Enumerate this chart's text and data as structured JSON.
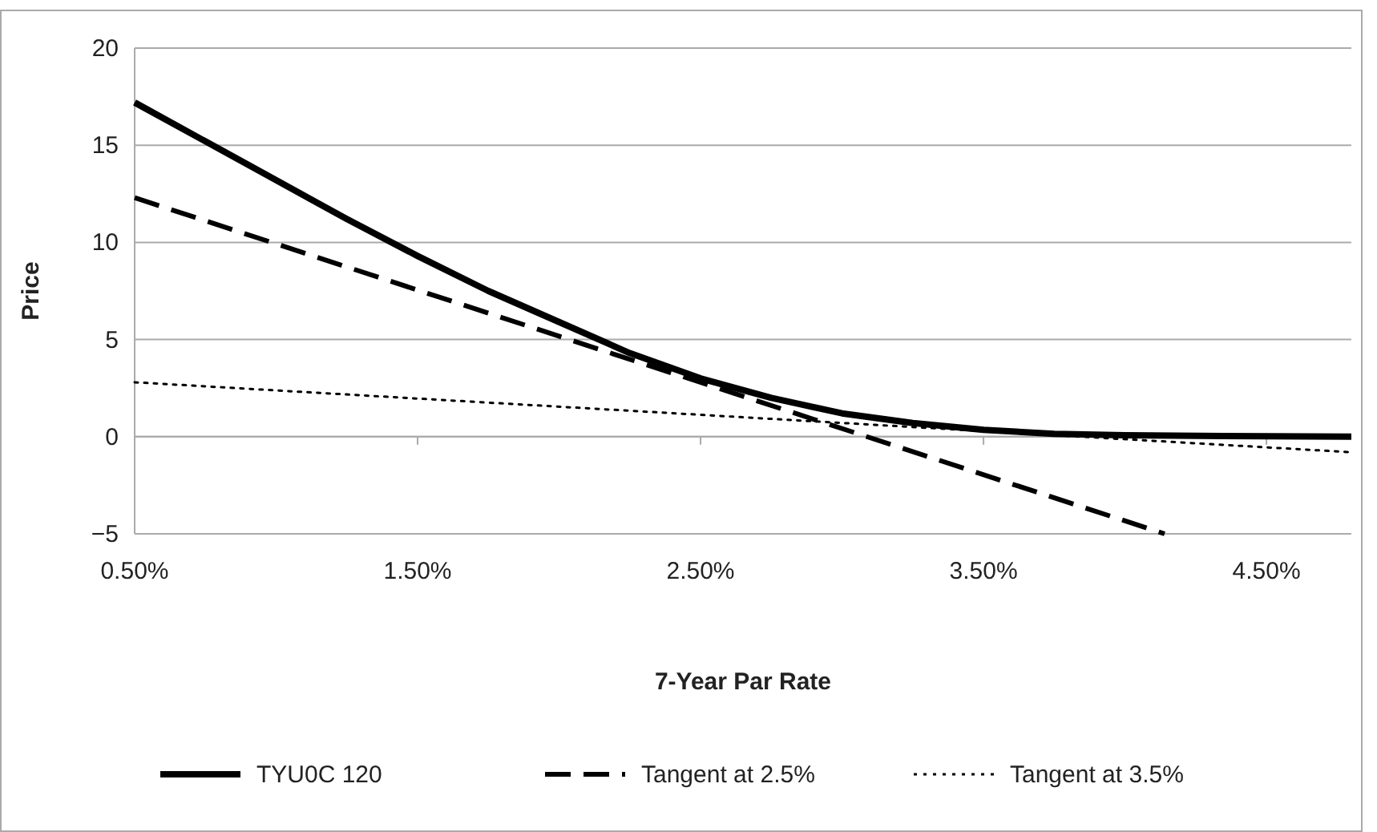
{
  "chart_data": {
    "type": "line",
    "xlabel": "7-Year Par Rate",
    "ylabel": "Price",
    "xlim": [
      0.5,
      4.8
    ],
    "xticks": [
      {
        "value": 0.5,
        "label": "0.50%"
      },
      {
        "value": 1.5,
        "label": "1.50%"
      },
      {
        "value": 2.5,
        "label": "2.50%"
      },
      {
        "value": 3.5,
        "label": "3.50%"
      },
      {
        "value": 4.5,
        "label": "4.50%"
      }
    ],
    "ylim": [
      -5,
      20
    ],
    "yticks": [
      {
        "value": -5,
        "label": "−5"
      },
      0,
      5,
      10,
      15,
      20
    ],
    "grid": "y",
    "legend": "bottom",
    "marker": "none",
    "series": [
      {
        "name": "TYU0C 120",
        "color": "#000000",
        "line_style": "solid",
        "x": [
          0.5,
          0.75,
          1.0,
          1.25,
          1.5,
          1.75,
          2.0,
          2.25,
          2.5,
          2.75,
          3.0,
          3.25,
          3.5,
          3.75,
          4.0,
          4.5,
          4.8
        ],
        "values": [
          17.2,
          15.2,
          13.2,
          11.2,
          9.3,
          7.5,
          5.9,
          4.3,
          3.0,
          2.0,
          1.2,
          0.7,
          0.35,
          0.15,
          0.07,
          0.02,
          0
        ]
      },
      {
        "name": "Tangent at 2.5%",
        "color": "#000000",
        "line_style": "dashed",
        "x": [
          0.5,
          4.14
        ],
        "values": [
          12.3,
          -5
        ]
      },
      {
        "name": "Tangent at 3.5%",
        "color": "#000000",
        "line_style": "dotted",
        "x": [
          0.5,
          4.8
        ],
        "values": [
          2.8,
          -0.8
        ]
      }
    ]
  }
}
